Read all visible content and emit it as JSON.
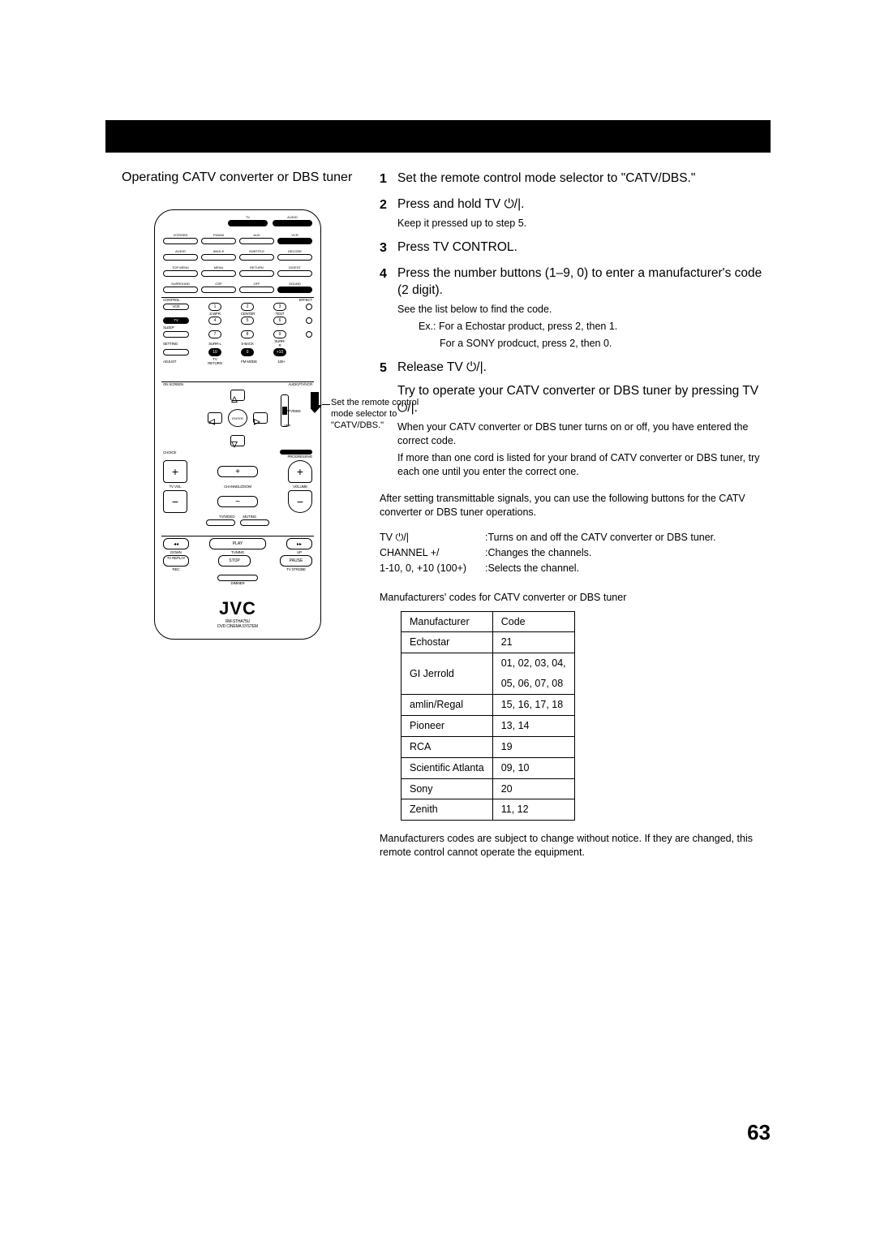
{
  "page": {
    "number": "63"
  },
  "left": {
    "title": "Operating CATV converter or DBS tuner",
    "callout": "Set the remote control mode selector to \"CATV/DBS.\"",
    "brand": "JVC",
    "model": "RM-STHA75U",
    "system": "DVD CINEMA SYSTEM",
    "remote_labels": {
      "tv": "TV",
      "audio": "AUDIO",
      "vcr_dbs": "VCR/DBS",
      "fm_am": "FM/AM",
      "aux": "AUX",
      "vcr": "VCR",
      "audio2": "AUDIO",
      "angle": "ANGLE",
      "subtitle": "SUBTITLE",
      "decode": "DECODE",
      "topmenu": "TOP MENU",
      "menu": "MENU",
      "return": "RETURN",
      "digest": "DIGEST",
      "surround": "SURROUND",
      "osp": "OSP",
      "off": "OFF",
      "sound": "SOUND",
      "control": "CONTROL",
      "effect": "EFFECT",
      "vcr2": "VCR",
      "swfr": "S.WFR",
      "center": "CENTER",
      "test": "TEST",
      "tv2": "TV",
      "sleep": "SLEEP",
      "setting": "SETTING",
      "surr_l": "SURR-L",
      "sback": "S-BACK",
      "surr_r": "SURR-R",
      "adjust": "ADJUST",
      "tvreturn": "TV RETURN",
      "fmmode": "FM MODE",
      "hundred": "100+",
      "onscreen": "ON SCREEN",
      "audio_tv_vcr": "AUDIO/TV/VCR",
      "catvdbs": "CATV/DBS",
      "vfp": "VFP",
      "choice": "CHOICE",
      "progressive": "PROGRESSIVE",
      "enter": "ENTER",
      "tvvol": "TV VOL",
      "channelzoom": "CHANNEL/ZOOM",
      "volume": "VOLUME",
      "tvvideo": "TV/VIDEO",
      "muting": "MUTING",
      "down": "DOWN",
      "tuning": "TUNING",
      "up": "UP",
      "tvreplay": "TV REPLAY",
      "rec": "REC",
      "tvstrobe": "TV STROBE",
      "play": "PLAY",
      "stop": "STOP",
      "pause": "PAUSE",
      "dimmer": "DIMMER"
    }
  },
  "right": {
    "steps": [
      {
        "n": "1",
        "text": "Set the remote control mode selector to \"CATV/DBS.\""
      },
      {
        "n": "2",
        "text": "Press and hold TV ",
        "sub": [
          "Keep it pressed up to step 5."
        ]
      },
      {
        "n": "3",
        "text": "Press TV CONTROL."
      },
      {
        "n": "4",
        "text": "Press the number buttons (1–9, 0) to enter a manufacturer's code (2 digit).",
        "sub": [
          "See the list below to find the code.",
          "Ex.: For a Echostar product, press 2, then 1.",
          "For a SONY prodcuct, press 2, then 0."
        ]
      },
      {
        "n": "5",
        "text": "Release TV ",
        "text2": "Try to operate your CATV converter or DBS tuner by pressing TV ",
        "sub": [
          "When your CATV converter or DBS tuner turns on or off, you have entered the correct code.",
          "If more than one cord is listed for your brand of CATV converter or DBS tuner, try each one until you enter the correct one."
        ]
      }
    ],
    "power_suffix": "/",
    "after": "After setting transmittable signals, you can use the following buttons for the CATV converter or DBS tuner operations.",
    "button_rows": [
      {
        "a": "TV ⏻/|",
        "b": ":Turns on and off the CATV converter or DBS tuner."
      },
      {
        "a": "CHANNEL +/",
        "b": ":Changes the channels."
      },
      {
        "a": "1-10, 0, +10 (100+)",
        "b": ":Selects the channel."
      }
    ],
    "mfr_title": "Manufacturers' codes for CATV converter or DBS tuner",
    "table": {
      "headers": [
        "Manufacturer",
        "Code"
      ],
      "rows": [
        [
          "Echostar",
          "21"
        ],
        [
          "GI Jerrold",
          "01, 02, 03, 04, 05, 06, 07, 08"
        ],
        [
          "amlin/Regal",
          "15, 16, 17, 18"
        ],
        [
          "Pioneer",
          "13, 14"
        ],
        [
          "RCA",
          "19"
        ],
        [
          "Scientific Atlanta",
          "09, 10"
        ],
        [
          "Sony",
          "20"
        ],
        [
          "Zenith",
          "11, 12"
        ]
      ]
    },
    "footnote": "Manufacturers codes are subject to change without notice. If they are changed, this remote control cannot operate the equipment."
  }
}
